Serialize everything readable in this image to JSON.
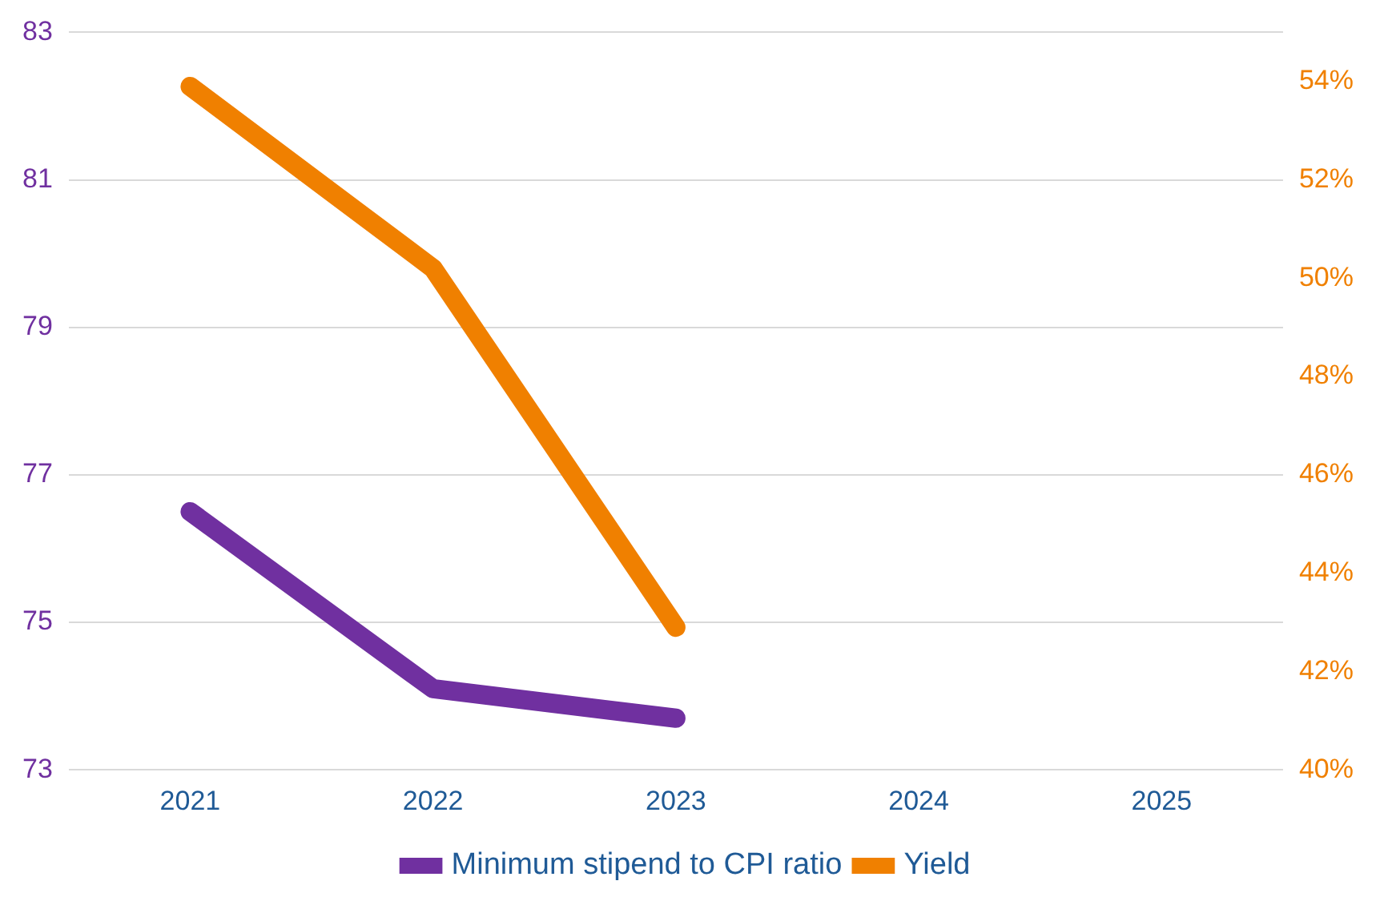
{
  "chart_data": {
    "type": "line",
    "categories": [
      "2021",
      "2022",
      "2023",
      "2024",
      "2025"
    ],
    "series": [
      {
        "name": "Minimum stipend to CPI ratio",
        "color": "#7030a0",
        "values": [
          76.5,
          74.1,
          73.7,
          null,
          null
        ]
      },
      {
        "name": "Yield",
        "color": "#f08000",
        "axis": "y2",
        "values": [
          53.9,
          50.2,
          42.9,
          null,
          null
        ]
      }
    ],
    "ylim": [
      73,
      83
    ],
    "yticks": [
      73,
      75,
      77,
      79,
      81,
      83
    ],
    "y2lim": [
      40,
      55
    ],
    "y2ticks": [
      {
        "value": 40,
        "label": "40%"
      },
      {
        "value": 42,
        "label": "42%"
      },
      {
        "value": 44,
        "label": "44%"
      },
      {
        "value": 46,
        "label": "46%"
      },
      {
        "value": 48,
        "label": "48%"
      },
      {
        "value": 50,
        "label": "50%"
      },
      {
        "value": 52,
        "label": "52%"
      },
      {
        "value": 54,
        "label": "54%"
      }
    ],
    "grid": "y",
    "legend": "bottom",
    "marker": "none",
    "line_style": "solid"
  }
}
